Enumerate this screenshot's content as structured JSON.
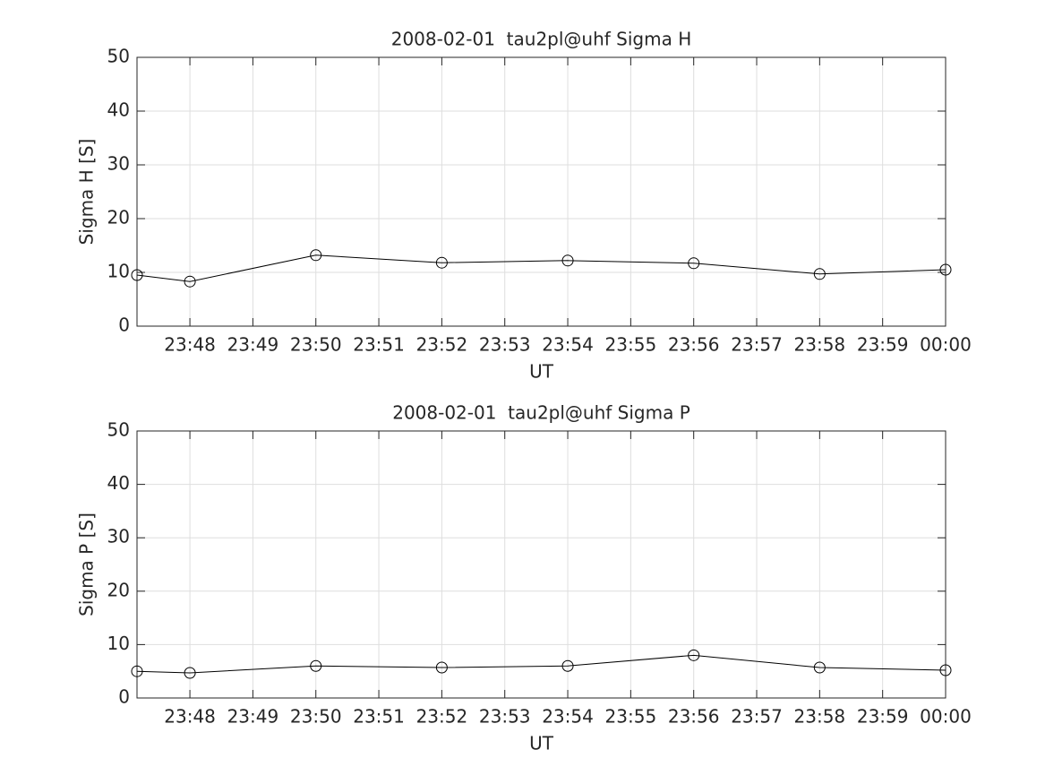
{
  "chart_data": [
    {
      "type": "line",
      "title": "2008-02-01  tau2pl@uhf Sigma H",
      "xlabel": "UT",
      "ylabel": "Sigma H [S]",
      "x": [
        1427.16,
        1428,
        1430,
        1432,
        1434,
        1436,
        1438,
        1440
      ],
      "values": [
        9.5,
        8.3,
        13.2,
        11.8,
        12.2,
        11.7,
        9.7,
        10.5
      ],
      "color": "#000000",
      "marker": "o",
      "xlim": [
        1427.16,
        1440
      ],
      "xticks": [
        {
          "value": 1428,
          "label": "23:48"
        },
        {
          "value": 1429,
          "label": "23:49"
        },
        {
          "value": 1430,
          "label": "23:50"
        },
        {
          "value": 1431,
          "label": "23:51"
        },
        {
          "value": 1432,
          "label": "23:52"
        },
        {
          "value": 1433,
          "label": "23:53"
        },
        {
          "value": 1434,
          "label": "23:54"
        },
        {
          "value": 1435,
          "label": "23:55"
        },
        {
          "value": 1436,
          "label": "23:56"
        },
        {
          "value": 1437,
          "label": "23:57"
        },
        {
          "value": 1438,
          "label": "23:58"
        },
        {
          "value": 1439,
          "label": "23:59"
        },
        {
          "value": 1440,
          "label": "00:00"
        }
      ],
      "ylim": [
        0,
        50
      ],
      "yticks": [
        0,
        10,
        20,
        30,
        40,
        50
      ],
      "grid": true
    },
    {
      "type": "line",
      "title": "2008-02-01  tau2pl@uhf Sigma P",
      "xlabel": "UT",
      "ylabel": "Sigma P [S]",
      "x": [
        1427.16,
        1428,
        1430,
        1432,
        1434,
        1436,
        1438,
        1440
      ],
      "values": [
        5.0,
        4.7,
        6.0,
        5.7,
        6.0,
        8.0,
        5.7,
        5.2
      ],
      "color": "#000000",
      "marker": "o",
      "xlim": [
        1427.16,
        1440
      ],
      "xticks": [
        {
          "value": 1428,
          "label": "23:48"
        },
        {
          "value": 1429,
          "label": "23:49"
        },
        {
          "value": 1430,
          "label": "23:50"
        },
        {
          "value": 1431,
          "label": "23:51"
        },
        {
          "value": 1432,
          "label": "23:52"
        },
        {
          "value": 1433,
          "label": "23:53"
        },
        {
          "value": 1434,
          "label": "23:54"
        },
        {
          "value": 1435,
          "label": "23:55"
        },
        {
          "value": 1436,
          "label": "23:56"
        },
        {
          "value": 1437,
          "label": "23:57"
        },
        {
          "value": 1438,
          "label": "23:58"
        },
        {
          "value": 1439,
          "label": "23:59"
        },
        {
          "value": 1440,
          "label": "00:00"
        }
      ],
      "ylim": [
        0,
        50
      ],
      "yticks": [
        0,
        10,
        20,
        30,
        40,
        50
      ],
      "grid": true
    }
  ]
}
